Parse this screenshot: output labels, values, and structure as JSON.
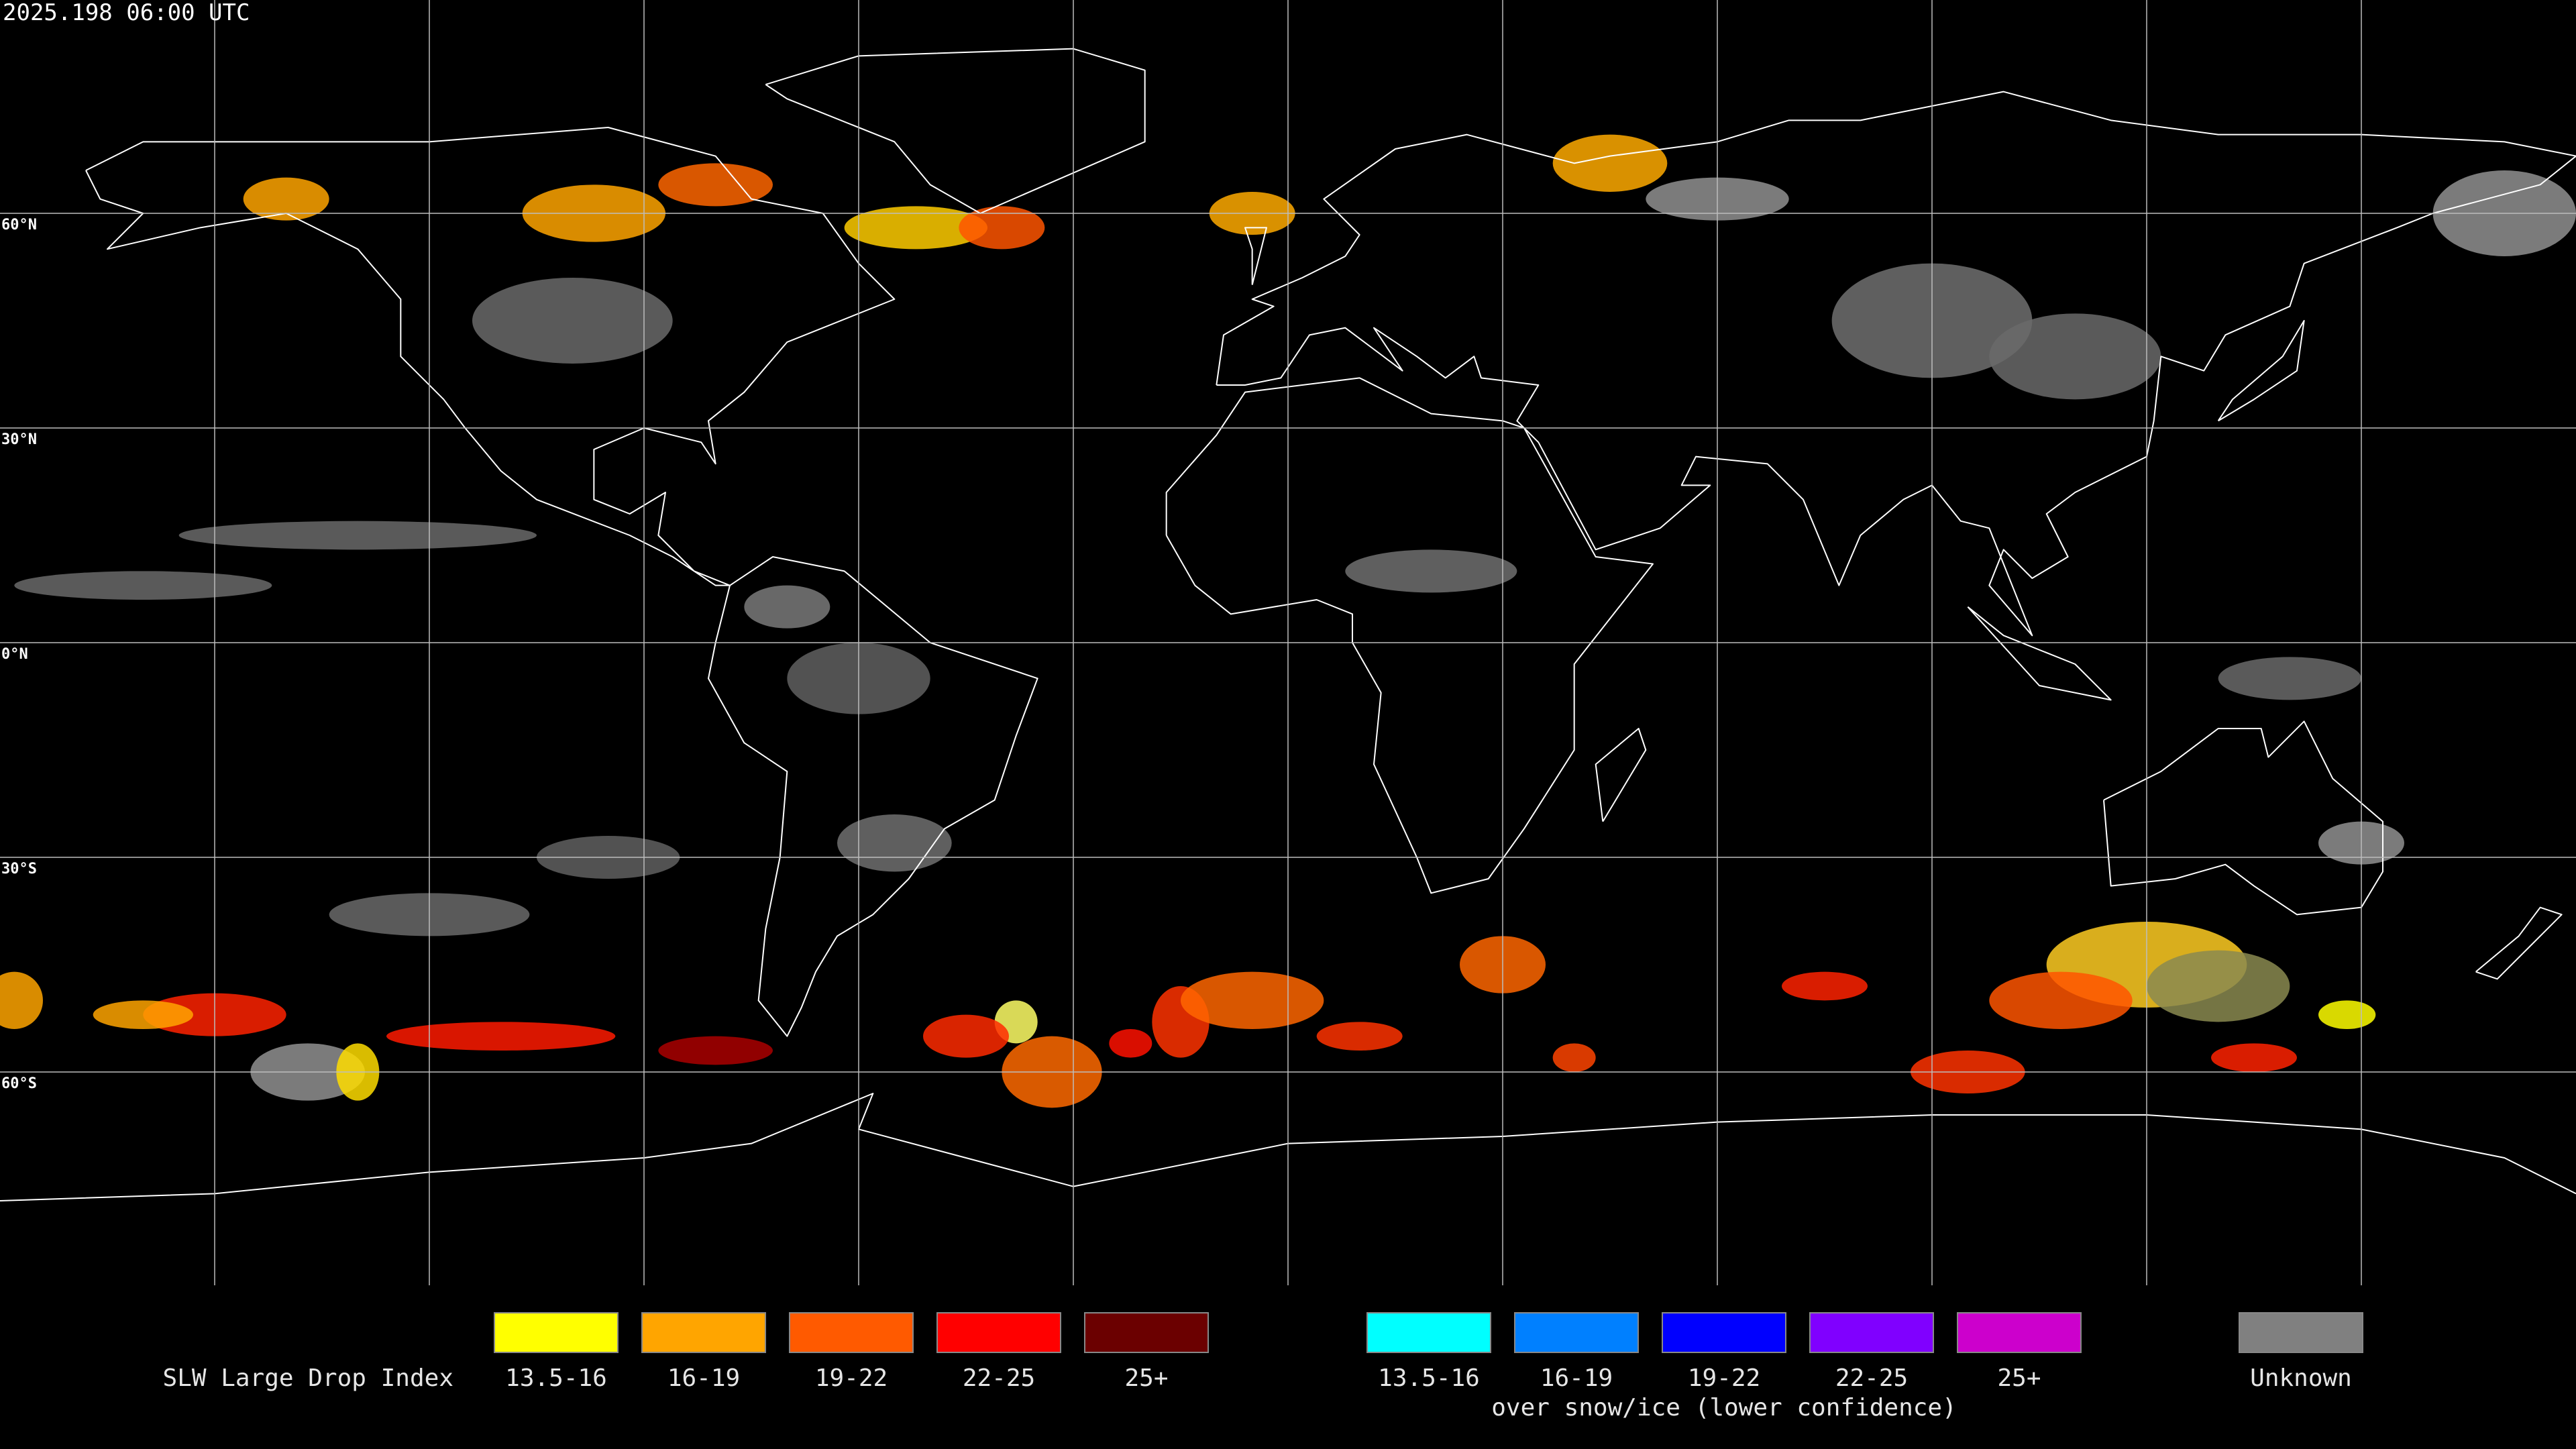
{
  "timestamp": "2025.198 06:00 UTC",
  "latitude_labels": [
    "60°N",
    "30°N",
    "0°N",
    "30°S",
    "60°S"
  ],
  "legend": {
    "title": "SLW Large Drop Index",
    "groups": [
      {
        "items": [
          {
            "label": "13.5-16",
            "color": "#ffff00"
          },
          {
            "label": "16-19",
            "color": "#ffa500"
          },
          {
            "label": "19-22",
            "color": "#ff5a00"
          },
          {
            "label": "22-25",
            "color": "#ff0000"
          },
          {
            "label": "25+",
            "color": "#6b0000"
          }
        ]
      },
      {
        "items": [
          {
            "label": "13.5-16",
            "color": "#00ffff"
          },
          {
            "label": "16-19",
            "color": "#0080ff"
          },
          {
            "label": "19-22",
            "color": "#0000ff"
          },
          {
            "label": "22-25",
            "color": "#8000ff"
          },
          {
            "label": "25+",
            "color": "#cc00cc"
          }
        ],
        "caption": "over snow/ice (lower confidence)"
      },
      {
        "items": [
          {
            "label": "Unknown",
            "color": "#808080"
          }
        ]
      }
    ]
  }
}
